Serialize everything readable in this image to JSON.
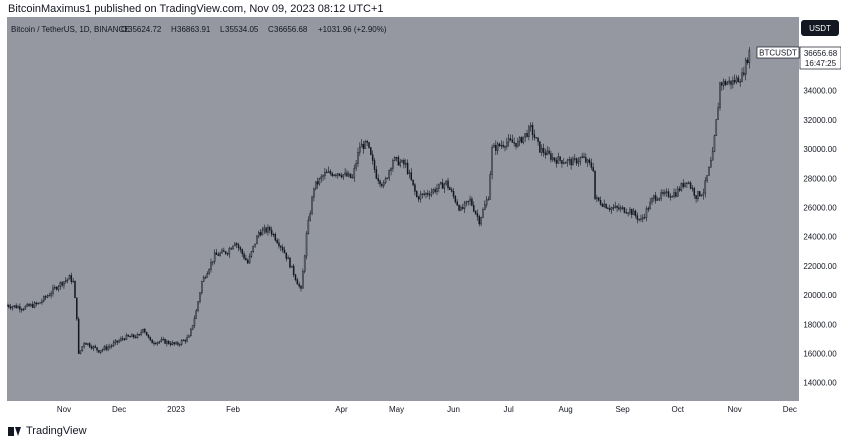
{
  "header": {
    "published": "BitcoinMaximus1 published on TradingView.com, Nov 09, 2023 08:12 UTC+1"
  },
  "symbol_info": {
    "name": "Bitcoin / TetherUS, 1D, BINANCE",
    "o_label": "O",
    "o_value": "35624.72",
    "h_label": "H",
    "h_value": "36863.91",
    "l_label": "L",
    "l_value": "35534.05",
    "c_label": "C",
    "c_value": "36656.68",
    "change": "+1031.96 (+2.90%)"
  },
  "currency_button": "USDT",
  "price_tag": {
    "ticker": "BTCUSDT",
    "price": "36656.68",
    "countdown": "16:47:25"
  },
  "footer": {
    "brand": "TradingView"
  },
  "colors": {
    "plot_bg": "#9598a1",
    "candle": "#131722",
    "text": "#131722",
    "axis_bg": "#ffffff",
    "button_bg": "#131722",
    "button_text": "#ffffff"
  },
  "chart_data": {
    "type": "candlestick",
    "title": "Bitcoin / TetherUS, 1D, BINANCE",
    "xlabel": "",
    "ylabel": "",
    "y_ticks": [
      "14000.00",
      "16000.00",
      "18000.00",
      "20000.00",
      "22000.00",
      "24000.00",
      "26000.00",
      "28000.00",
      "30000.00",
      "32000.00",
      "34000.00"
    ],
    "x_ticks": [
      "Nov",
      "Dec",
      "2023",
      "Feb",
      "Apr",
      "May",
      "Jun",
      "Jul",
      "Aug",
      "Sep",
      "Oct",
      "Nov",
      "Dec"
    ],
    "x_range": [
      "2022-10-01",
      "2023-12-06"
    ],
    "ylim": [
      12750,
      39050
    ],
    "grid": false,
    "close_path": [
      [
        "2022-10-01",
        19300
      ],
      [
        "2022-10-10",
        19150
      ],
      [
        "2022-10-18",
        19400
      ],
      [
        "2022-10-25",
        20200
      ],
      [
        "2022-10-29",
        20700
      ],
      [
        "2022-11-04",
        21200
      ],
      [
        "2022-11-06",
        20900
      ],
      [
        "2022-11-08",
        18500
      ],
      [
        "2022-11-09",
        15900
      ],
      [
        "2022-11-12",
        16800
      ],
      [
        "2022-11-20",
        16200
      ],
      [
        "2022-11-26",
        16500
      ],
      [
        "2022-12-04",
        17100
      ],
      [
        "2022-12-12",
        17200
      ],
      [
        "2022-12-14",
        17800
      ],
      [
        "2022-12-18",
        16800
      ],
      [
        "2022-12-25",
        16850
      ],
      [
        "2023-01-01",
        16600
      ],
      [
        "2023-01-08",
        17100
      ],
      [
        "2023-01-12",
        18900
      ],
      [
        "2023-01-15",
        20900
      ],
      [
        "2023-01-22",
        22700
      ],
      [
        "2023-01-29",
        23000
      ],
      [
        "2023-02-02",
        23700
      ],
      [
        "2023-02-09",
        22200
      ],
      [
        "2023-02-15",
        24300
      ],
      [
        "2023-02-21",
        24500
      ],
      [
        "2023-02-28",
        23200
      ],
      [
        "2023-03-03",
        22400
      ],
      [
        "2023-03-10",
        20300
      ],
      [
        "2023-03-13",
        24100
      ],
      [
        "2023-03-17",
        27400
      ],
      [
        "2023-03-23",
        28300
      ],
      [
        "2023-03-30",
        28400
      ],
      [
        "2023-04-07",
        28000
      ],
      [
        "2023-04-11",
        30200
      ],
      [
        "2023-04-15",
        30300
      ],
      [
        "2023-04-20",
        28200
      ],
      [
        "2023-04-24",
        27500
      ],
      [
        "2023-04-29",
        29300
      ],
      [
        "2023-05-06",
        28900
      ],
      [
        "2023-05-12",
        26700
      ],
      [
        "2023-05-20",
        27100
      ],
      [
        "2023-05-28",
        27700
      ],
      [
        "2023-06-05",
        25800
      ],
      [
        "2023-06-10",
        26500
      ],
      [
        "2023-06-15",
        25100
      ],
      [
        "2023-06-20",
        26800
      ],
      [
        "2023-06-22",
        30000
      ],
      [
        "2023-06-30",
        30500
      ],
      [
        "2023-07-06",
        30400
      ],
      [
        "2023-07-13",
        31400
      ],
      [
        "2023-07-18",
        30000
      ],
      [
        "2023-07-26",
        29300
      ],
      [
        "2023-08-05",
        29100
      ],
      [
        "2023-08-10",
        29400
      ],
      [
        "2023-08-16",
        28700
      ],
      [
        "2023-08-17",
        26600
      ],
      [
        "2023-08-25",
        26000
      ],
      [
        "2023-09-05",
        25800
      ],
      [
        "2023-09-11",
        25100
      ],
      [
        "2023-09-18",
        26700
      ],
      [
        "2023-09-30",
        27000
      ],
      [
        "2023-10-06",
        27900
      ],
      [
        "2023-10-11",
        26800
      ],
      [
        "2023-10-15",
        27100
      ],
      [
        "2023-10-20",
        29600
      ],
      [
        "2023-10-23",
        33000
      ],
      [
        "2023-10-24",
        34500
      ],
      [
        "2023-10-31",
        34600
      ],
      [
        "2023-11-05",
        35000
      ],
      [
        "2023-11-09",
        36657
      ]
    ]
  }
}
